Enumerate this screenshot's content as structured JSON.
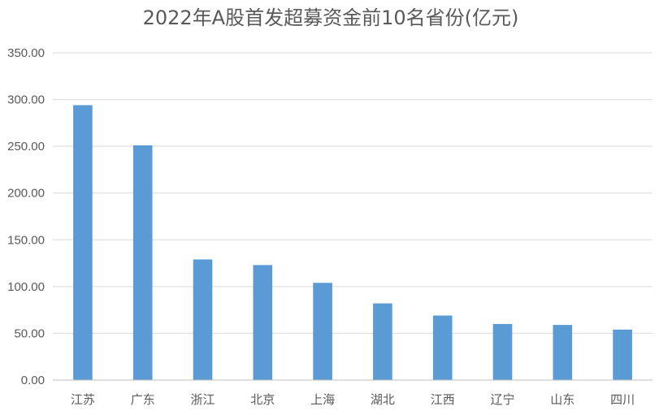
{
  "chart_data": {
    "type": "bar",
    "title": "2022年A股首发超募资金前10名省份(亿元)",
    "categories": [
      "江苏",
      "广东",
      "浙江",
      "北京",
      "上海",
      "湖北",
      "江西",
      "辽宁",
      "山东",
      "四川"
    ],
    "values": [
      294,
      251,
      129,
      123,
      104,
      82,
      69,
      60,
      59,
      54
    ],
    "ylim": [
      0,
      350
    ],
    "yticks": [
      "0.00",
      "50.00",
      "100.00",
      "150.00",
      "200.00",
      "250.00",
      "300.00",
      "350.00"
    ],
    "grid": true,
    "colors": {
      "bar": "#5b9bd5",
      "grid": "#d9d9d9",
      "text": "#595959"
    }
  }
}
